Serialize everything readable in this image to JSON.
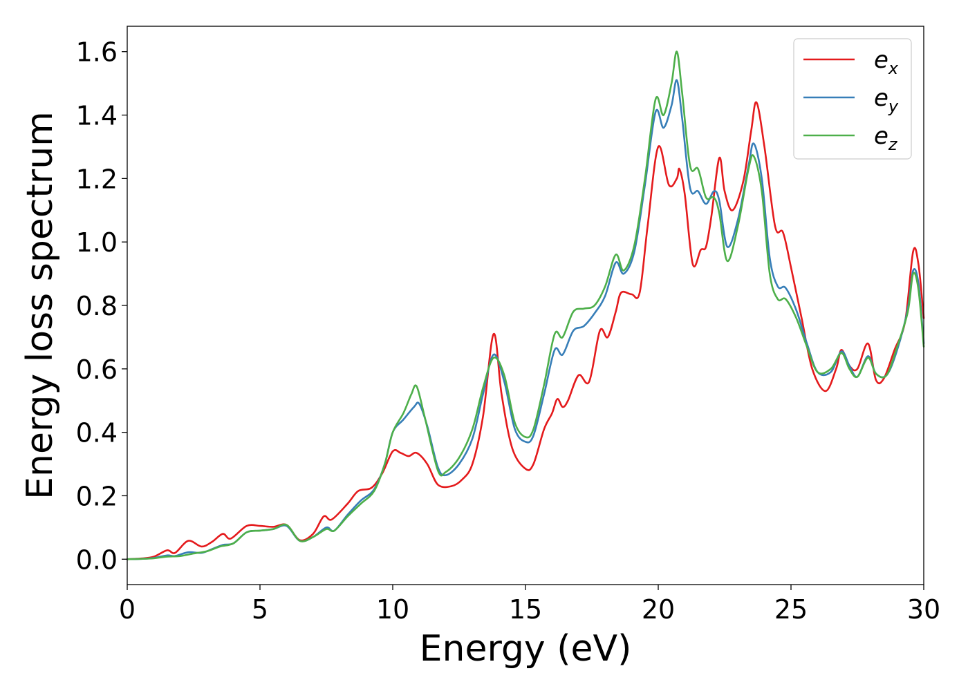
{
  "chart_data": {
    "type": "line",
    "title": "",
    "xlabel": "Energy (eV)",
    "ylabel": "Energy loss spectrum",
    "xlim": [
      0,
      30
    ],
    "ylim": [
      -0.08,
      1.68
    ],
    "xticks": [
      0,
      5,
      10,
      15,
      20,
      25,
      30
    ],
    "xtick_labels": [
      "0",
      "5",
      "10",
      "15",
      "20",
      "25",
      "30"
    ],
    "yticks": [
      0.0,
      0.2,
      0.4,
      0.6,
      0.8,
      1.0,
      1.2,
      1.4,
      1.6
    ],
    "ytick_labels": [
      "0.0",
      "0.2",
      "0.4",
      "0.6",
      "0.8",
      "1.0",
      "1.2",
      "1.4",
      "1.6"
    ],
    "grid": false,
    "legend_position": "top-right",
    "series": [
      {
        "name_base": "e",
        "name_sub": "x",
        "color": "#e41a1c",
        "points": [
          [
            0,
            0
          ],
          [
            0.5,
            0.002
          ],
          [
            1.0,
            0.008
          ],
          [
            1.5,
            0.028
          ],
          [
            1.8,
            0.02
          ],
          [
            2.3,
            0.058
          ],
          [
            2.8,
            0.04
          ],
          [
            3.2,
            0.055
          ],
          [
            3.6,
            0.08
          ],
          [
            3.9,
            0.065
          ],
          [
            4.5,
            0.105
          ],
          [
            5.0,
            0.105
          ],
          [
            5.5,
            0.102
          ],
          [
            6.0,
            0.108
          ],
          [
            6.5,
            0.06
          ],
          [
            7.0,
            0.08
          ],
          [
            7.4,
            0.135
          ],
          [
            7.7,
            0.125
          ],
          [
            8.3,
            0.175
          ],
          [
            8.7,
            0.215
          ],
          [
            9.2,
            0.225
          ],
          [
            9.6,
            0.27
          ],
          [
            10.0,
            0.34
          ],
          [
            10.3,
            0.335
          ],
          [
            10.6,
            0.325
          ],
          [
            10.9,
            0.335
          ],
          [
            11.3,
            0.3
          ],
          [
            11.7,
            0.235
          ],
          [
            12.2,
            0.23
          ],
          [
            12.6,
            0.25
          ],
          [
            13.0,
            0.3
          ],
          [
            13.4,
            0.45
          ],
          [
            13.8,
            0.71
          ],
          [
            14.1,
            0.52
          ],
          [
            14.5,
            0.35
          ],
          [
            15.0,
            0.285
          ],
          [
            15.3,
            0.3
          ],
          [
            15.7,
            0.41
          ],
          [
            16.0,
            0.46
          ],
          [
            16.2,
            0.505
          ],
          [
            16.4,
            0.48
          ],
          [
            16.6,
            0.5
          ],
          [
            17.0,
            0.58
          ],
          [
            17.4,
            0.56
          ],
          [
            17.8,
            0.72
          ],
          [
            18.1,
            0.7
          ],
          [
            18.4,
            0.78
          ],
          [
            18.6,
            0.84
          ],
          [
            19.0,
            0.835
          ],
          [
            19.3,
            0.84
          ],
          [
            19.6,
            1.05
          ],
          [
            20.0,
            1.3
          ],
          [
            20.4,
            1.18
          ],
          [
            20.7,
            1.2
          ],
          [
            20.8,
            1.23
          ],
          [
            21.0,
            1.15
          ],
          [
            21.3,
            0.93
          ],
          [
            21.6,
            0.975
          ],
          [
            21.8,
            0.985
          ],
          [
            22.0,
            1.08
          ],
          [
            22.3,
            1.265
          ],
          [
            22.5,
            1.16
          ],
          [
            22.8,
            1.1
          ],
          [
            23.2,
            1.19
          ],
          [
            23.5,
            1.35
          ],
          [
            23.7,
            1.44
          ],
          [
            24.0,
            1.3
          ],
          [
            24.4,
            1.05
          ],
          [
            24.7,
            1.03
          ],
          [
            25.0,
            0.92
          ],
          [
            25.4,
            0.76
          ],
          [
            25.8,
            0.6
          ],
          [
            26.3,
            0.53
          ],
          [
            26.7,
            0.6
          ],
          [
            26.9,
            0.66
          ],
          [
            27.2,
            0.61
          ],
          [
            27.5,
            0.6
          ],
          [
            27.9,
            0.68
          ],
          [
            28.2,
            0.565
          ],
          [
            28.5,
            0.57
          ],
          [
            28.9,
            0.66
          ],
          [
            29.3,
            0.75
          ],
          [
            29.6,
            0.97
          ],
          [
            29.8,
            0.93
          ],
          [
            30.0,
            0.76
          ]
        ]
      },
      {
        "name_base": "e",
        "name_sub": "y",
        "color": "#377eb8",
        "points": [
          [
            0,
            0
          ],
          [
            0.5,
            0.001
          ],
          [
            1.0,
            0.004
          ],
          [
            1.5,
            0.012
          ],
          [
            1.8,
            0.01
          ],
          [
            2.3,
            0.022
          ],
          [
            2.8,
            0.02
          ],
          [
            3.2,
            0.032
          ],
          [
            3.6,
            0.045
          ],
          [
            4.0,
            0.05
          ],
          [
            4.5,
            0.085
          ],
          [
            5.0,
            0.09
          ],
          [
            5.5,
            0.095
          ],
          [
            6.0,
            0.105
          ],
          [
            6.5,
            0.058
          ],
          [
            7.0,
            0.07
          ],
          [
            7.5,
            0.1
          ],
          [
            7.8,
            0.09
          ],
          [
            8.3,
            0.14
          ],
          [
            8.8,
            0.185
          ],
          [
            9.3,
            0.22
          ],
          [
            9.7,
            0.3
          ],
          [
            10.0,
            0.4
          ],
          [
            10.4,
            0.44
          ],
          [
            10.8,
            0.48
          ],
          [
            11.0,
            0.49
          ],
          [
            11.3,
            0.42
          ],
          [
            11.7,
            0.29
          ],
          [
            12.0,
            0.265
          ],
          [
            12.5,
            0.3
          ],
          [
            13.0,
            0.38
          ],
          [
            13.4,
            0.52
          ],
          [
            13.8,
            0.645
          ],
          [
            14.2,
            0.56
          ],
          [
            14.6,
            0.41
          ],
          [
            15.0,
            0.37
          ],
          [
            15.3,
            0.39
          ],
          [
            15.7,
            0.52
          ],
          [
            16.1,
            0.66
          ],
          [
            16.4,
            0.645
          ],
          [
            16.8,
            0.72
          ],
          [
            17.2,
            0.735
          ],
          [
            17.6,
            0.775
          ],
          [
            18.0,
            0.83
          ],
          [
            18.4,
            0.935
          ],
          [
            18.7,
            0.9
          ],
          [
            19.1,
            0.97
          ],
          [
            19.5,
            1.18
          ],
          [
            19.9,
            1.41
          ],
          [
            20.2,
            1.36
          ],
          [
            20.5,
            1.43
          ],
          [
            20.7,
            1.51
          ],
          [
            20.9,
            1.39
          ],
          [
            21.2,
            1.17
          ],
          [
            21.5,
            1.16
          ],
          [
            21.8,
            1.12
          ],
          [
            22.1,
            1.16
          ],
          [
            22.3,
            1.13
          ],
          [
            22.6,
            0.985
          ],
          [
            23.0,
            1.07
          ],
          [
            23.4,
            1.24
          ],
          [
            23.6,
            1.31
          ],
          [
            23.9,
            1.2
          ],
          [
            24.2,
            0.95
          ],
          [
            24.5,
            0.86
          ],
          [
            24.8,
            0.855
          ],
          [
            25.2,
            0.785
          ],
          [
            25.6,
            0.68
          ],
          [
            26.0,
            0.59
          ],
          [
            26.5,
            0.59
          ],
          [
            26.9,
            0.655
          ],
          [
            27.2,
            0.61
          ],
          [
            27.5,
            0.575
          ],
          [
            27.9,
            0.64
          ],
          [
            28.2,
            0.585
          ],
          [
            28.6,
            0.58
          ],
          [
            29.0,
            0.66
          ],
          [
            29.4,
            0.79
          ],
          [
            29.6,
            0.91
          ],
          [
            29.8,
            0.87
          ],
          [
            30.0,
            0.68
          ]
        ]
      },
      {
        "name_base": "e",
        "name_sub": "z",
        "color": "#4daf4a",
        "points": [
          [
            0,
            0
          ],
          [
            0.5,
            0.001
          ],
          [
            1.0,
            0.003
          ],
          [
            1.5,
            0.008
          ],
          [
            2.0,
            0.01
          ],
          [
            2.5,
            0.018
          ],
          [
            3.0,
            0.025
          ],
          [
            3.5,
            0.04
          ],
          [
            4.0,
            0.05
          ],
          [
            4.5,
            0.085
          ],
          [
            5.0,
            0.09
          ],
          [
            5.5,
            0.095
          ],
          [
            6.0,
            0.108
          ],
          [
            6.5,
            0.058
          ],
          [
            7.0,
            0.07
          ],
          [
            7.5,
            0.095
          ],
          [
            7.8,
            0.09
          ],
          [
            8.3,
            0.135
          ],
          [
            8.8,
            0.175
          ],
          [
            9.3,
            0.215
          ],
          [
            9.7,
            0.3
          ],
          [
            10.0,
            0.4
          ],
          [
            10.4,
            0.46
          ],
          [
            10.7,
            0.52
          ],
          [
            10.9,
            0.545
          ],
          [
            11.2,
            0.45
          ],
          [
            11.7,
            0.28
          ],
          [
            12.0,
            0.275
          ],
          [
            12.5,
            0.32
          ],
          [
            13.0,
            0.41
          ],
          [
            13.4,
            0.54
          ],
          [
            13.8,
            0.635
          ],
          [
            14.2,
            0.58
          ],
          [
            14.6,
            0.43
          ],
          [
            15.0,
            0.385
          ],
          [
            15.3,
            0.41
          ],
          [
            15.7,
            0.55
          ],
          [
            16.1,
            0.71
          ],
          [
            16.4,
            0.7
          ],
          [
            16.8,
            0.78
          ],
          [
            17.2,
            0.79
          ],
          [
            17.6,
            0.8
          ],
          [
            18.0,
            0.86
          ],
          [
            18.4,
            0.96
          ],
          [
            18.7,
            0.91
          ],
          [
            19.1,
            0.99
          ],
          [
            19.5,
            1.2
          ],
          [
            19.9,
            1.45
          ],
          [
            20.2,
            1.4
          ],
          [
            20.5,
            1.5
          ],
          [
            20.7,
            1.6
          ],
          [
            20.9,
            1.47
          ],
          [
            21.2,
            1.24
          ],
          [
            21.5,
            1.23
          ],
          [
            21.8,
            1.14
          ],
          [
            22.1,
            1.14
          ],
          [
            22.3,
            1.09
          ],
          [
            22.6,
            0.94
          ],
          [
            23.0,
            1.05
          ],
          [
            23.4,
            1.23
          ],
          [
            23.6,
            1.27
          ],
          [
            23.9,
            1.16
          ],
          [
            24.2,
            0.9
          ],
          [
            24.5,
            0.82
          ],
          [
            24.8,
            0.82
          ],
          [
            25.2,
            0.76
          ],
          [
            25.6,
            0.67
          ],
          [
            26.0,
            0.59
          ],
          [
            26.5,
            0.6
          ],
          [
            26.9,
            0.65
          ],
          [
            27.2,
            0.6
          ],
          [
            27.5,
            0.575
          ],
          [
            27.9,
            0.635
          ],
          [
            28.2,
            0.585
          ],
          [
            28.6,
            0.58
          ],
          [
            29.0,
            0.67
          ],
          [
            29.4,
            0.78
          ],
          [
            29.6,
            0.9
          ],
          [
            29.8,
            0.85
          ],
          [
            30.0,
            0.67
          ]
        ]
      }
    ]
  }
}
